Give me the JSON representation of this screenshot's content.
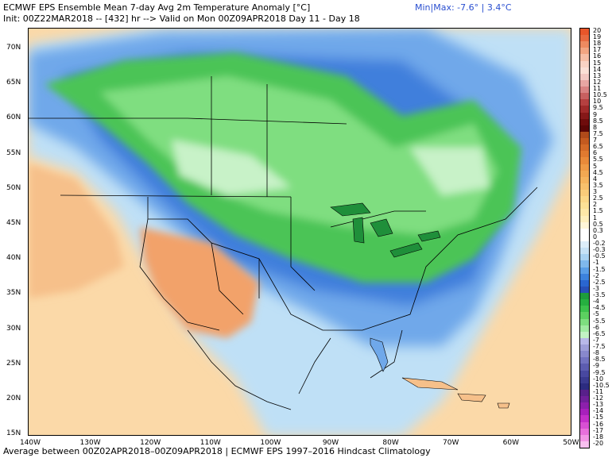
{
  "header": {
    "title": "ECMWF EPS Ensemble Mean 7-day Avg 2m Temperature Anomaly [°C]",
    "init": "Init: 00Z22MAR2018 -- [432] hr --> Valid on Mon 00Z09APR2018  Day 11 - Day 18",
    "minmax": "Min|Max: -7.6° | 3.4°C"
  },
  "footer": "Average between 00Z02APR2018–00Z09APR2018 | ECMWF EPS 1997–2016 Hindcast Climatology",
  "map": {
    "lat_labels": [
      "70N",
      "65N",
      "60N",
      "55N",
      "50N",
      "45N",
      "40N",
      "35N",
      "30N",
      "25N",
      "20N",
      "15N"
    ],
    "lon_labels": [
      "140W",
      "130W",
      "120W",
      "110W",
      "100W",
      "90W",
      "80W",
      "70W",
      "60W",
      "50W"
    ]
  },
  "legend": {
    "labels": [
      "20",
      "19",
      "18",
      "17",
      "16",
      "15",
      "14",
      "13",
      "12",
      "11",
      "10.5",
      "10",
      "9.5",
      "9",
      "8.5",
      "8",
      "7.5",
      "7",
      "6.5",
      "6",
      "5.5",
      "5",
      "4.5",
      "4",
      "3.5",
      "3",
      "2.5",
      "2",
      "1.5",
      "1",
      "0.5",
      "0.3",
      "0",
      "-0.2",
      "-0.3",
      "-0.5",
      "-1",
      "-1.5",
      "-2",
      "-2.5",
      "-3",
      "-3.5",
      "-4",
      "-4.5",
      "-5",
      "-5.5",
      "-6",
      "-6.5",
      "-7",
      "-7.5",
      "-8",
      "-8.5",
      "-9",
      "-9.5",
      "-10",
      "-10.5",
      "-11",
      "-12",
      "-13",
      "-14",
      "-15",
      "-16",
      "-17",
      "-18",
      "-20"
    ],
    "colors": [
      "#e8562a",
      "#e86a40",
      "#ee8a60",
      "#f2a582",
      "#f6bea6",
      "#f9d3c4",
      "#fbe0d6",
      "#f3c9c3",
      "#e7a6a3",
      "#d98383",
      "#c86060",
      "#b54040",
      "#a02a2a",
      "#861818",
      "#6e0c0c",
      "#5c0606",
      "#b04a1a",
      "#c45a20",
      "#d46a28",
      "#e07a30",
      "#e98a3a",
      "#ef9a46",
      "#f2a852",
      "#f5b45e",
      "#f7c06c",
      "#f9cc7a",
      "#fbd888",
      "#fce196",
      "#fde8a8",
      "#feefbc",
      "#fff6d8",
      "#ffffff",
      "#ffffff",
      "#ddeefa",
      "#c6e2f6",
      "#a8d2f2",
      "#7fb8ec",
      "#5a9ee6",
      "#3c82dc",
      "#2a66d0",
      "#2850b8",
      "#1e9c3c",
      "#26b040",
      "#3cc24c",
      "#5cd060",
      "#7ede80",
      "#a0eaa2",
      "#c2f2c4",
      "#b8b8e8",
      "#9e9ed8",
      "#8888cc",
      "#7272c0",
      "#5c5cb0",
      "#4848a0",
      "#3a3a90",
      "#2c2c80",
      "#58208a",
      "#70209a",
      "#8c20ac",
      "#a820bc",
      "#c430ca",
      "#d850d4",
      "#e870dc",
      "#f296e6",
      "#f8c0f0"
    ]
  }
}
